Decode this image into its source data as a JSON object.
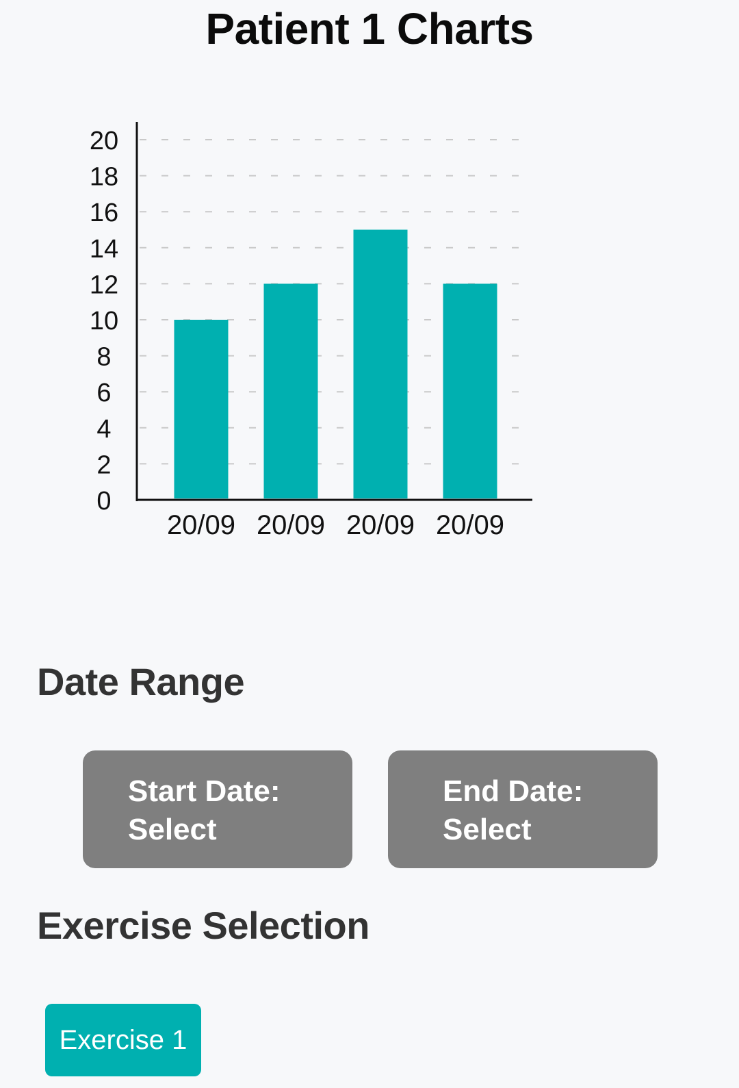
{
  "page": {
    "title": "Patient 1 Charts"
  },
  "chart_data": {
    "type": "bar",
    "title": "",
    "xlabel": "",
    "ylabel": "",
    "categories": [
      "20/09",
      "20/09",
      "20/09",
      "20/09"
    ],
    "values": [
      10,
      12,
      15,
      12
    ],
    "ylim": [
      0,
      20
    ],
    "yticks": [
      "0",
      "2",
      "4",
      "6",
      "8",
      "10",
      "12",
      "14",
      "16",
      "18",
      "20"
    ],
    "grid": true,
    "bar_color": "#00b0b0"
  },
  "date_range": {
    "heading": "Date Range",
    "start": {
      "label": "Start Date:",
      "value": "Select"
    },
    "end": {
      "label": "End Date:",
      "value": "Select"
    }
  },
  "exercise_selection": {
    "heading": "Exercise Selection",
    "options": [
      "Exercise 1"
    ]
  },
  "colors": {
    "accent": "#00b0b0",
    "button_gray": "#7f7f7f",
    "background": "#f7f8fa"
  }
}
